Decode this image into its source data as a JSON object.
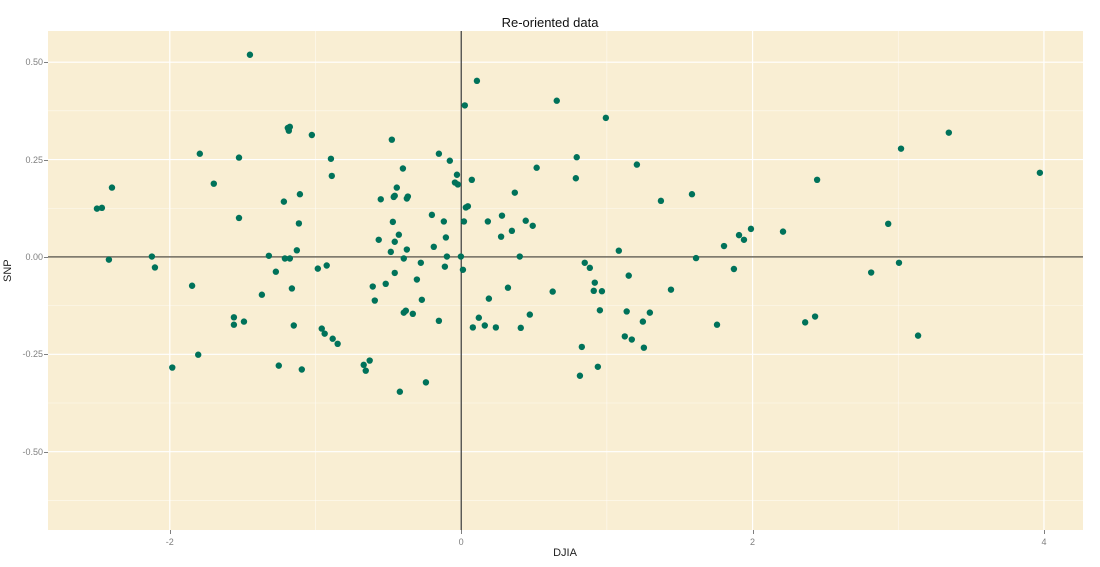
{
  "chart_data": {
    "type": "scatter",
    "title": "Re-oriented data",
    "xlabel": "DJIA",
    "ylabel": "SNP",
    "xlim": [
      -2.836,
      4.268
    ],
    "ylim": [
      -0.701,
      0.58
    ],
    "x_ticks": [
      -2,
      0,
      2,
      4
    ],
    "x_tick_labels": [
      "-2",
      "0",
      "2",
      "4"
    ],
    "y_ticks": [
      0.5,
      0.25,
      0.0,
      -0.25,
      -0.5
    ],
    "y_tick_labels": [
      "0.50",
      "0.25",
      "0.00",
      "-0.25",
      "-0.50"
    ],
    "grid": true,
    "reference_lines": {
      "vertical_x": 0,
      "horizontal_y": 0
    },
    "legend": null,
    "point_color": "#00725a",
    "panel_background": "#f9eed3",
    "points": [
      [
        -2.5,
        0.124
      ],
      [
        -2.466,
        0.126
      ],
      [
        -2.397,
        0.178
      ],
      [
        -2.418,
        -0.007
      ],
      [
        -2.123,
        0.001
      ],
      [
        -2.102,
        -0.027
      ],
      [
        -1.847,
        -0.074
      ],
      [
        -1.794,
        0.265
      ],
      [
        -1.698,
        0.188
      ],
      [
        -1.805,
        -0.251
      ],
      [
        -1.983,
        -0.284
      ],
      [
        -1.56,
        -0.174
      ],
      [
        -1.525,
        0.1
      ],
      [
        -1.491,
        -0.166
      ],
      [
        -1.45,
        0.519
      ],
      [
        -1.525,
        0.255
      ],
      [
        -1.56,
        -0.155
      ],
      [
        -1.368,
        -0.097
      ],
      [
        -1.32,
        0.003
      ],
      [
        -1.272,
        -0.038
      ],
      [
        -1.252,
        -0.279
      ],
      [
        -1.217,
        0.142
      ],
      [
        -1.21,
        -0.004
      ],
      [
        -1.176,
        -0.004
      ],
      [
        -1.162,
        -0.081
      ],
      [
        -1.149,
        -0.176
      ],
      [
        -1.183,
        0.324
      ],
      [
        -1.176,
        0.334
      ],
      [
        -1.19,
        0.331
      ],
      [
        -1.128,
        0.017
      ],
      [
        -1.114,
        0.086
      ],
      [
        -1.107,
        0.161
      ],
      [
        -1.094,
        -0.289
      ],
      [
        -1.025,
        0.313
      ],
      [
        -0.984,
        -0.03
      ],
      [
        -0.957,
        -0.184
      ],
      [
        -0.937,
        -0.197
      ],
      [
        -0.923,
        -0.022
      ],
      [
        -0.894,
        0.252
      ],
      [
        -0.888,
        0.208
      ],
      [
        -0.882,
        -0.21
      ],
      [
        -0.848,
        -0.223
      ],
      [
        -0.669,
        -0.277
      ],
      [
        -0.655,
        -0.292
      ],
      [
        -0.628,
        -0.266
      ],
      [
        -0.607,
        -0.076
      ],
      [
        -0.593,
        -0.112
      ],
      [
        -0.566,
        0.044
      ],
      [
        -0.552,
        0.148
      ],
      [
        -0.518,
        -0.069
      ],
      [
        -0.483,
        0.013
      ],
      [
        -0.469,
        0.09
      ],
      [
        -0.463,
        0.154
      ],
      [
        -0.456,
        0.157
      ],
      [
        -0.476,
        0.301
      ],
      [
        -0.456,
        0.039
      ],
      [
        -0.456,
        -0.041
      ],
      [
        -0.442,
        0.178
      ],
      [
        -0.428,
        0.057
      ],
      [
        -0.421,
        -0.346
      ],
      [
        -0.4,
        0.227
      ],
      [
        -0.394,
        -0.004
      ],
      [
        -0.394,
        -0.143
      ],
      [
        -0.38,
        -0.138
      ],
      [
        -0.373,
        0.15
      ],
      [
        -0.366,
        0.155
      ],
      [
        -0.373,
        0.019
      ],
      [
        -0.332,
        -0.146
      ],
      [
        -0.304,
        -0.058
      ],
      [
        -0.277,
        -0.015
      ],
      [
        -0.27,
        -0.11
      ],
      [
        -0.242,
        -0.322
      ],
      [
        -0.201,
        0.108
      ],
      [
        -0.188,
        0.026
      ],
      [
        -0.153,
        0.265
      ],
      [
        -0.153,
        -0.164
      ],
      [
        -0.105,
        0.05
      ],
      [
        -0.119,
        0.091
      ],
      [
        -0.112,
        -0.025
      ],
      [
        -0.078,
        0.247
      ],
      [
        -0.098,
        0.001
      ],
      [
        -0.043,
        0.191
      ],
      [
        -0.023,
        0.186
      ],
      [
        -0.029,
        0.211
      ],
      [
        -0.002,
        0.001
      ],
      [
        0.012,
        -0.033
      ],
      [
        0.019,
        0.091
      ],
      [
        0.025,
        0.389
      ],
      [
        0.032,
        0.127
      ],
      [
        0.046,
        0.13
      ],
      [
        0.073,
        0.198
      ],
      [
        0.08,
        -0.181
      ],
      [
        0.108,
        0.452
      ],
      [
        0.121,
        -0.156
      ],
      [
        0.162,
        -0.176
      ],
      [
        0.183,
        0.091
      ],
      [
        0.19,
        -0.107
      ],
      [
        0.238,
        -0.181
      ],
      [
        0.274,
        0.052
      ],
      [
        0.28,
        0.106
      ],
      [
        0.321,
        -0.079
      ],
      [
        0.348,
        0.067
      ],
      [
        0.368,
        0.165
      ],
      [
        0.402,
        0.001
      ],
      [
        0.409,
        -0.182
      ],
      [
        0.443,
        0.093
      ],
      [
        0.471,
        -0.148
      ],
      [
        0.491,
        0.08
      ],
      [
        0.518,
        0.229
      ],
      [
        0.628,
        -0.089
      ],
      [
        0.656,
        0.401
      ],
      [
        0.787,
        0.202
      ],
      [
        0.793,
        0.256
      ],
      [
        0.815,
        -0.305
      ],
      [
        0.828,
        -0.231
      ],
      [
        0.848,
        -0.015
      ],
      [
        0.883,
        -0.028
      ],
      [
        0.91,
        -0.087
      ],
      [
        0.917,
        -0.066
      ],
      [
        0.938,
        -0.282
      ],
      [
        0.952,
        -0.137
      ],
      [
        0.966,
        -0.088
      ],
      [
        0.993,
        0.357
      ],
      [
        1.082,
        0.016
      ],
      [
        1.123,
        -0.204
      ],
      [
        1.136,
        -0.14
      ],
      [
        1.15,
        -0.048
      ],
      [
        1.171,
        -0.212
      ],
      [
        1.206,
        0.237
      ],
      [
        1.254,
        -0.233
      ],
      [
        1.247,
        -0.166
      ],
      [
        1.295,
        -0.143
      ],
      [
        1.371,
        0.144
      ],
      [
        1.44,
        -0.084
      ],
      [
        1.584,
        0.161
      ],
      [
        1.612,
        -0.003
      ],
      [
        1.756,
        -0.174
      ],
      [
        1.804,
        0.028
      ],
      [
        1.872,
        -0.031
      ],
      [
        1.907,
        0.056
      ],
      [
        1.941,
        0.044
      ],
      [
        1.989,
        0.072
      ],
      [
        2.209,
        0.065
      ],
      [
        2.361,
        -0.168
      ],
      [
        2.429,
        -0.153
      ],
      [
        2.443,
        0.198
      ],
      [
        2.814,
        -0.04
      ],
      [
        2.931,
        0.085
      ],
      [
        3.005,
        -0.015
      ],
      [
        3.019,
        0.278
      ],
      [
        3.136,
        -0.202
      ],
      [
        3.347,
        0.319
      ],
      [
        3.972,
        0.216
      ]
    ]
  }
}
